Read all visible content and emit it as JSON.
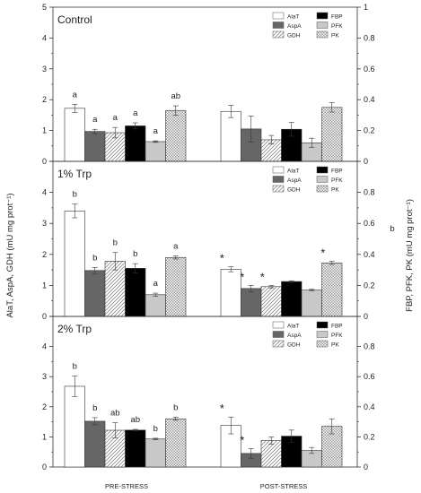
{
  "chart_data": {
    "type": "bar",
    "y_left_label": "AlaT, AspA, GDH (mU mg prot⁻¹)",
    "y_right_label": "FBP, PFK, PK (mU mg prot⁻¹)",
    "y_left_ticks": [
      "0",
      "1",
      "2",
      "3",
      "4",
      "5"
    ],
    "y_right_ticks": [
      "0",
      "0.2",
      "0.4",
      "0.6",
      "0.8",
      "1"
    ],
    "ylim_left": [
      0,
      5
    ],
    "ylim_right": [
      0,
      1
    ],
    "groups": [
      "PRE-STRESS",
      "POST-STRESS"
    ],
    "stray_text": "b",
    "series": [
      {
        "name": "AlaT",
        "axis": "left",
        "fill": "#ffffff",
        "pattern": "none"
      },
      {
        "name": "AspA",
        "axis": "left",
        "fill": "#666666",
        "pattern": "none"
      },
      {
        "name": "GDH",
        "axis": "left",
        "fill": "#ffffff",
        "pattern": "diag"
      },
      {
        "name": "FBP",
        "axis": "right",
        "fill": "#000000",
        "pattern": "none"
      },
      {
        "name": "PFK",
        "axis": "right",
        "fill": "#c8c8c8",
        "pattern": "none"
      },
      {
        "name": "PK",
        "axis": "right",
        "fill": "#ffffff",
        "pattern": "check"
      }
    ],
    "legend_order": [
      "AlaT",
      "AspA",
      "GDH",
      "FBP",
      "PFK",
      "PK"
    ],
    "legend_placement": "top-right",
    "panels": [
      {
        "title": "Control",
        "values": [
          [
            1.72,
            0.97,
            0.93,
            0.23,
            0.128,
            0.33
          ],
          [
            1.62,
            1.05,
            0.7,
            0.208,
            0.12,
            0.35
          ]
        ],
        "errors": [
          [
            0.13,
            0.07,
            0.17,
            0.02,
            0.005,
            0.03
          ],
          [
            0.2,
            0.42,
            0.14,
            0.045,
            0.03,
            0.03
          ]
        ],
        "letters": [
          [
            "a",
            "a",
            "a",
            "a",
            "a",
            "ab"
          ],
          [
            "",
            "",
            "",
            "",
            "",
            ""
          ]
        ],
        "stars": [
          [
            false,
            false,
            false,
            false,
            false,
            false
          ],
          [
            false,
            false,
            false,
            false,
            false,
            false
          ]
        ]
      },
      {
        "title": "1% Trp",
        "values": [
          [
            3.4,
            1.48,
            1.78,
            0.31,
            0.14,
            0.38
          ],
          [
            1.52,
            0.9,
            0.96,
            0.225,
            0.17,
            0.345
          ]
        ],
        "errors": [
          [
            0.22,
            0.1,
            0.28,
            0.03,
            0.01,
            0.01
          ],
          [
            0.08,
            0.1,
            0.04,
            0.005,
            0.005,
            0.01
          ]
        ],
        "letters": [
          [
            "b",
            "b",
            "b",
            "b",
            "a",
            "a"
          ],
          [
            "",
            "",
            "",
            "",
            "",
            ""
          ]
        ],
        "stars": [
          [
            false,
            false,
            false,
            false,
            false,
            false
          ],
          [
            true,
            true,
            true,
            false,
            false,
            true
          ]
        ]
      },
      {
        "title": "2% Trp",
        "values": [
          [
            2.68,
            1.52,
            1.22,
            0.245,
            0.186,
            0.32
          ],
          [
            1.38,
            0.45,
            0.88,
            0.205,
            0.11,
            0.27
          ]
        ],
        "errors": [
          [
            0.34,
            0.12,
            0.25,
            0.005,
            0.005,
            0.01
          ],
          [
            0.28,
            0.16,
            0.12,
            0.04,
            0.02,
            0.05
          ]
        ],
        "letters": [
          [
            "b",
            "b",
            "ab",
            "ab",
            "b",
            "b"
          ],
          [
            "",
            "",
            "",
            "",
            "",
            ""
          ]
        ],
        "stars": [
          [
            false,
            false,
            false,
            false,
            false,
            false
          ],
          [
            true,
            true,
            false,
            false,
            false,
            false
          ]
        ]
      }
    ]
  }
}
